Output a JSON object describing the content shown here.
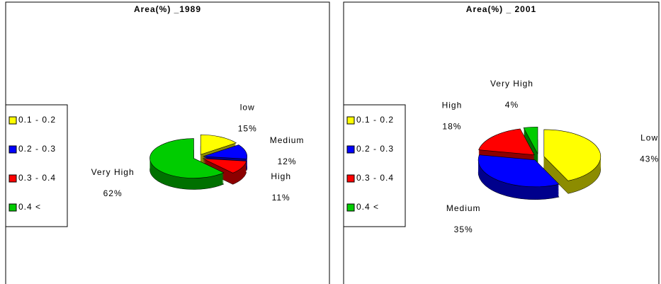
{
  "chart_data": [
    {
      "type": "pie",
      "title": "Area(%) _1989",
      "legend": [
        "0.1 - 0.2",
        "0.2 - 0.3",
        "0.3 - 0.4",
        "0.4 <"
      ],
      "categories": [
        "low",
        "Medium",
        "High",
        "Very High"
      ],
      "values": [
        15,
        12,
        11,
        62
      ],
      "value_labels": [
        "15%",
        "12%",
        "11%",
        "62%"
      ],
      "colors": [
        "#ffff00",
        "#0000ff",
        "#ff0000",
        "#00cc00"
      ]
    },
    {
      "type": "pie",
      "title": "Area(%) _ 2001",
      "legend": [
        "0.1 - 0.2",
        "0.2 - 0.3",
        "0.3 - 0.4",
        "0.4 <"
      ],
      "categories": [
        "Low",
        "Medium",
        "High",
        "Very High"
      ],
      "values": [
        43,
        35,
        18,
        4
      ],
      "value_labels": [
        "43%",
        "35%",
        "18%",
        "4%"
      ],
      "colors": [
        "#ffff00",
        "#0000ff",
        "#ff0000",
        "#00cc00"
      ]
    }
  ]
}
